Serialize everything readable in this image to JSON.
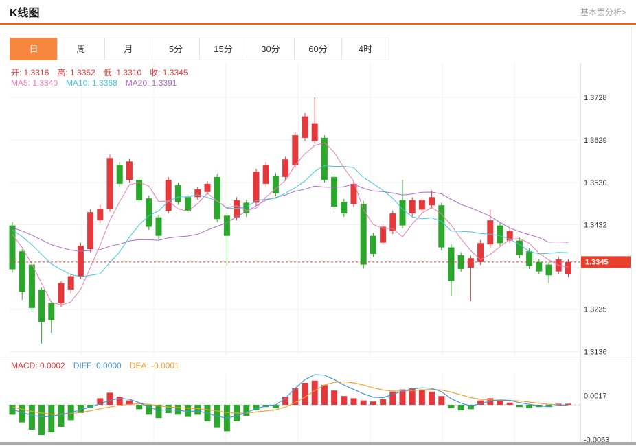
{
  "header": {
    "title": "K线图",
    "link_label": "基本面分析>"
  },
  "tabs": {
    "items": [
      {
        "label": "日",
        "active": true
      },
      {
        "label": "周",
        "active": false
      },
      {
        "label": "月",
        "active": false
      },
      {
        "label": "5分",
        "active": false
      },
      {
        "label": "15分",
        "active": false
      },
      {
        "label": "30分",
        "active": false
      },
      {
        "label": "60分",
        "active": false
      },
      {
        "label": "4时",
        "active": false
      }
    ]
  },
  "legend": {
    "ohlc": [
      {
        "name": "legend-open",
        "label": "开:",
        "value": "1.3316",
        "color": "#e4393c"
      },
      {
        "name": "legend-high",
        "label": "高:",
        "value": "1.3352",
        "color": "#e4393c"
      },
      {
        "name": "legend-low",
        "label": "低:",
        "value": "1.3310",
        "color": "#e4393c"
      },
      {
        "name": "legend-close",
        "label": "收:",
        "value": "1.3345",
        "color": "#e4393c"
      }
    ],
    "ma": [
      {
        "name": "legend-ma5",
        "label": "MA5:",
        "value": "1.3340",
        "color": "#ef7cac"
      },
      {
        "name": "legend-ma10",
        "label": "MA10:",
        "value": "1.3368",
        "color": "#3ec6e0"
      },
      {
        "name": "legend-ma20",
        "label": "MA20:",
        "value": "1.3391",
        "color": "#a96cc7"
      }
    ],
    "macd": [
      {
        "name": "legend-macd",
        "label": "MACD:",
        "value": "0.0002",
        "color": "#e4393c"
      },
      {
        "name": "legend-diff",
        "label": "DIFF:",
        "value": "0.0000",
        "color": "#4494d8"
      },
      {
        "name": "legend-dea",
        "label": "DEA:",
        "value": "-0.0001",
        "color": "#f0a030"
      }
    ]
  },
  "colors": {
    "up": "#e4393c",
    "down": "#2ba82b",
    "ma5": "#ef7cac",
    "ma10": "#3ec6e0",
    "ma20": "#a96cc7",
    "diff": "#4494d8",
    "dea": "#f0a030",
    "accent": "#ff6000",
    "tab_active": "#f7873f",
    "price_tag": "#e8402c"
  },
  "chart_data": {
    "type": "candlestick",
    "title": "K线图",
    "period": "日",
    "main": {
      "y_axis": [
        {
          "label": "1.3728",
          "value": 1.3728
        },
        {
          "label": "1.3629",
          "value": 1.3629
        },
        {
          "label": "1.3530",
          "value": 1.353
        },
        {
          "label": "1.3432",
          "value": 1.3432
        },
        {
          "label": "1.3235",
          "value": 1.3235
        },
        {
          "label": "1.3136",
          "value": 1.3136
        }
      ],
      "gridline_values": [
        1.3728,
        1.3629,
        1.353,
        1.3432,
        1.3333,
        1.3235,
        1.3136
      ],
      "current_price": {
        "label": "1.3345",
        "value": 1.3345
      },
      "ma_periods": [
        5,
        10,
        20
      ],
      "ma_seed": 1.343,
      "candles_ohlc": [
        [
          1.343,
          1.3438,
          1.332,
          1.3328
        ],
        [
          1.337,
          1.3375,
          1.3257,
          1.3276
        ],
        [
          1.3339,
          1.3345,
          1.3228,
          1.3238
        ],
        [
          1.3281,
          1.3285,
          1.3155,
          1.3205
        ],
        [
          1.325,
          1.3255,
          1.318,
          1.321
        ],
        [
          1.3249,
          1.33,
          1.324,
          1.3296
        ],
        [
          1.3281,
          1.3318,
          1.3272,
          1.3312
        ],
        [
          1.3312,
          1.339,
          1.3305,
          1.3383
        ],
        [
          1.3375,
          1.3468,
          1.3368,
          1.3461
        ],
        [
          1.3442,
          1.3478,
          1.3435,
          1.3469
        ],
        [
          1.3469,
          1.3595,
          1.3462,
          1.3587
        ],
        [
          1.3571,
          1.3578,
          1.352,
          1.3527
        ],
        [
          1.3536,
          1.3585,
          1.353,
          1.3579
        ],
        [
          1.3536,
          1.3543,
          1.3482,
          1.3489
        ],
        [
          1.3493,
          1.35,
          1.342,
          1.3427
        ],
        [
          1.3449,
          1.3455,
          1.3398,
          1.3406
        ],
        [
          1.3464,
          1.3543,
          1.3458,
          1.3536
        ],
        [
          1.3524,
          1.353,
          1.3478,
          1.3485
        ],
        [
          1.3496,
          1.3502,
          1.3458,
          1.3464
        ],
        [
          1.3496,
          1.352,
          1.349,
          1.3514
        ],
        [
          1.3508,
          1.3533,
          1.3502,
          1.3527
        ],
        [
          1.3543,
          1.355,
          1.3438,
          1.3445
        ],
        [
          1.3453,
          1.346,
          1.3336,
          1.3406
        ],
        [
          1.3449,
          1.3496,
          1.3442,
          1.3489
        ],
        [
          1.3483,
          1.349,
          1.345,
          1.3458
        ],
        [
          1.3483,
          1.3562,
          1.3476,
          1.3555
        ],
        [
          1.3527,
          1.3578,
          1.352,
          1.3571
        ],
        [
          1.3546,
          1.3552,
          1.3498,
          1.3505
        ],
        [
          1.3543,
          1.359,
          1.3536,
          1.3584
        ],
        [
          1.3571,
          1.3648,
          1.3564,
          1.364
        ],
        [
          1.3634,
          1.3692,
          1.3627,
          1.3684
        ],
        [
          1.3626,
          1.3728,
          1.362,
          1.3668
        ],
        [
          1.3634,
          1.364,
          1.353,
          1.3536
        ],
        [
          1.3543,
          1.355,
          1.3466,
          1.3474
        ],
        [
          1.3485,
          1.3492,
          1.345,
          1.3458
        ],
        [
          1.348,
          1.3534,
          1.3473,
          1.3527
        ],
        [
          1.348,
          1.3487,
          1.333,
          1.3339
        ],
        [
          1.3406,
          1.3413,
          1.3356,
          1.3364
        ],
        [
          1.339,
          1.3434,
          1.3384,
          1.3427
        ],
        [
          1.3417,
          1.3465,
          1.341,
          1.3458
        ],
        [
          1.3489,
          1.3536,
          1.3423,
          1.343
        ],
        [
          1.3458,
          1.3496,
          1.3451,
          1.3489
        ],
        [
          1.3467,
          1.3495,
          1.346,
          1.3489
        ],
        [
          1.3477,
          1.3511,
          1.347,
          1.3496
        ],
        [
          1.3477,
          1.3483,
          1.3372,
          1.3379
        ],
        [
          1.3379,
          1.3386,
          1.3265,
          1.3301
        ],
        [
          1.3361,
          1.3368,
          1.3322,
          1.3329
        ],
        [
          1.3332,
          1.336,
          1.3254,
          1.3354
        ],
        [
          1.3345,
          1.3396,
          1.3338,
          1.3389
        ],
        [
          1.3386,
          1.3467,
          1.3379,
          1.3442
        ],
        [
          1.343,
          1.3436,
          1.3382,
          1.3389
        ],
        [
          1.3395,
          1.3424,
          1.3389,
          1.3417
        ],
        [
          1.3395,
          1.3402,
          1.3354,
          1.3361
        ],
        [
          1.337,
          1.3377,
          1.3329,
          1.3336
        ],
        [
          1.3345,
          1.3352,
          1.3316,
          1.3323
        ],
        [
          1.3339,
          1.3345,
          1.3296,
          1.3314
        ],
        [
          1.3323,
          1.3358,
          1.3316,
          1.3351
        ],
        [
          1.3316,
          1.3352,
          1.331,
          1.3345
        ]
      ]
    },
    "macd": {
      "y_axis": [
        {
          "label": "0.0017",
          "value": 0.0017
        },
        {
          "label": "-0.0063",
          "value": -0.0063
        }
      ],
      "macd": [
        -0.0018,
        -0.0032,
        -0.0045,
        -0.0055,
        -0.005,
        -0.004,
        -0.0028,
        -0.0015,
        -0.0006,
        0.0012,
        0.0022,
        0.0015,
        0.0008,
        -0.0008,
        -0.0018,
        -0.0024,
        -0.0015,
        -0.0018,
        -0.0022,
        -0.0018,
        -0.003,
        -0.0042,
        -0.0048,
        -0.003,
        -0.002,
        -0.001,
        -0.0004,
        -0.0006,
        0.0015,
        0.003,
        0.004,
        0.0044,
        0.0036,
        0.0026,
        0.0016,
        0.0012,
        0.0008,
        0.0006,
        0.001,
        0.0024,
        0.0028,
        0.003,
        0.0028,
        0.0024,
        0.0016,
        -0.0006,
        -0.001,
        -0.0008,
        0.0008,
        0.0012,
        0.0008,
        0.0004,
        -0.0004,
        -0.0006,
        -0.0004,
        -0.0004,
        0.0002,
        0.0002
      ],
      "diff": [
        -0.0008,
        -0.0014,
        -0.0019,
        -0.0022,
        -0.0021,
        -0.0018,
        -0.0014,
        -0.0009,
        -0.0004,
        0.0002,
        0.0008,
        0.0012,
        0.001,
        0.0004,
        -0.0004,
        -0.001,
        -0.0009,
        -0.001,
        -0.0012,
        -0.0011,
        -0.0015,
        -0.0021,
        -0.0024,
        -0.002,
        -0.0014,
        -0.0007,
        -0.0002,
        0.0,
        0.0012,
        0.003,
        0.0046,
        0.0055,
        0.0054,
        0.0046,
        0.0036,
        0.0028,
        0.002,
        0.0014,
        0.0013,
        0.0019,
        0.0025,
        0.0029,
        0.0031,
        0.003,
        0.0024,
        0.0011,
        0.0003,
        -0.0002,
        0.0002,
        0.0007,
        0.0009,
        0.0008,
        0.0004,
        0.0001,
        -0.0002,
        -0.0003,
        -0.0001,
        0.0
      ],
      "dea": [
        -0.0004,
        -0.0008,
        -0.0012,
        -0.0015,
        -0.0017,
        -0.0017,
        -0.0016,
        -0.0014,
        -0.0011,
        -0.0007,
        -0.0004,
        -0.0001,
        0.0001,
        0.0002,
        0.0001,
        -0.0002,
        -0.0004,
        -0.0005,
        -0.0006,
        -0.0007,
        -0.0009,
        -0.0011,
        -0.0014,
        -0.0015,
        -0.0015,
        -0.0013,
        -0.0011,
        -0.0009,
        -0.0004,
        0.0004,
        0.0014,
        0.0026,
        0.0036,
        0.0041,
        0.0042,
        0.004,
        0.0036,
        0.0031,
        0.0027,
        0.0025,
        0.0025,
        0.0026,
        0.0027,
        0.0028,
        0.0027,
        0.0023,
        0.0018,
        0.0013,
        0.001,
        0.0009,
        0.0008,
        0.0008,
        0.0007,
        0.0005,
        0.0003,
        0.0001,
        0.0,
        -0.0001
      ]
    }
  }
}
